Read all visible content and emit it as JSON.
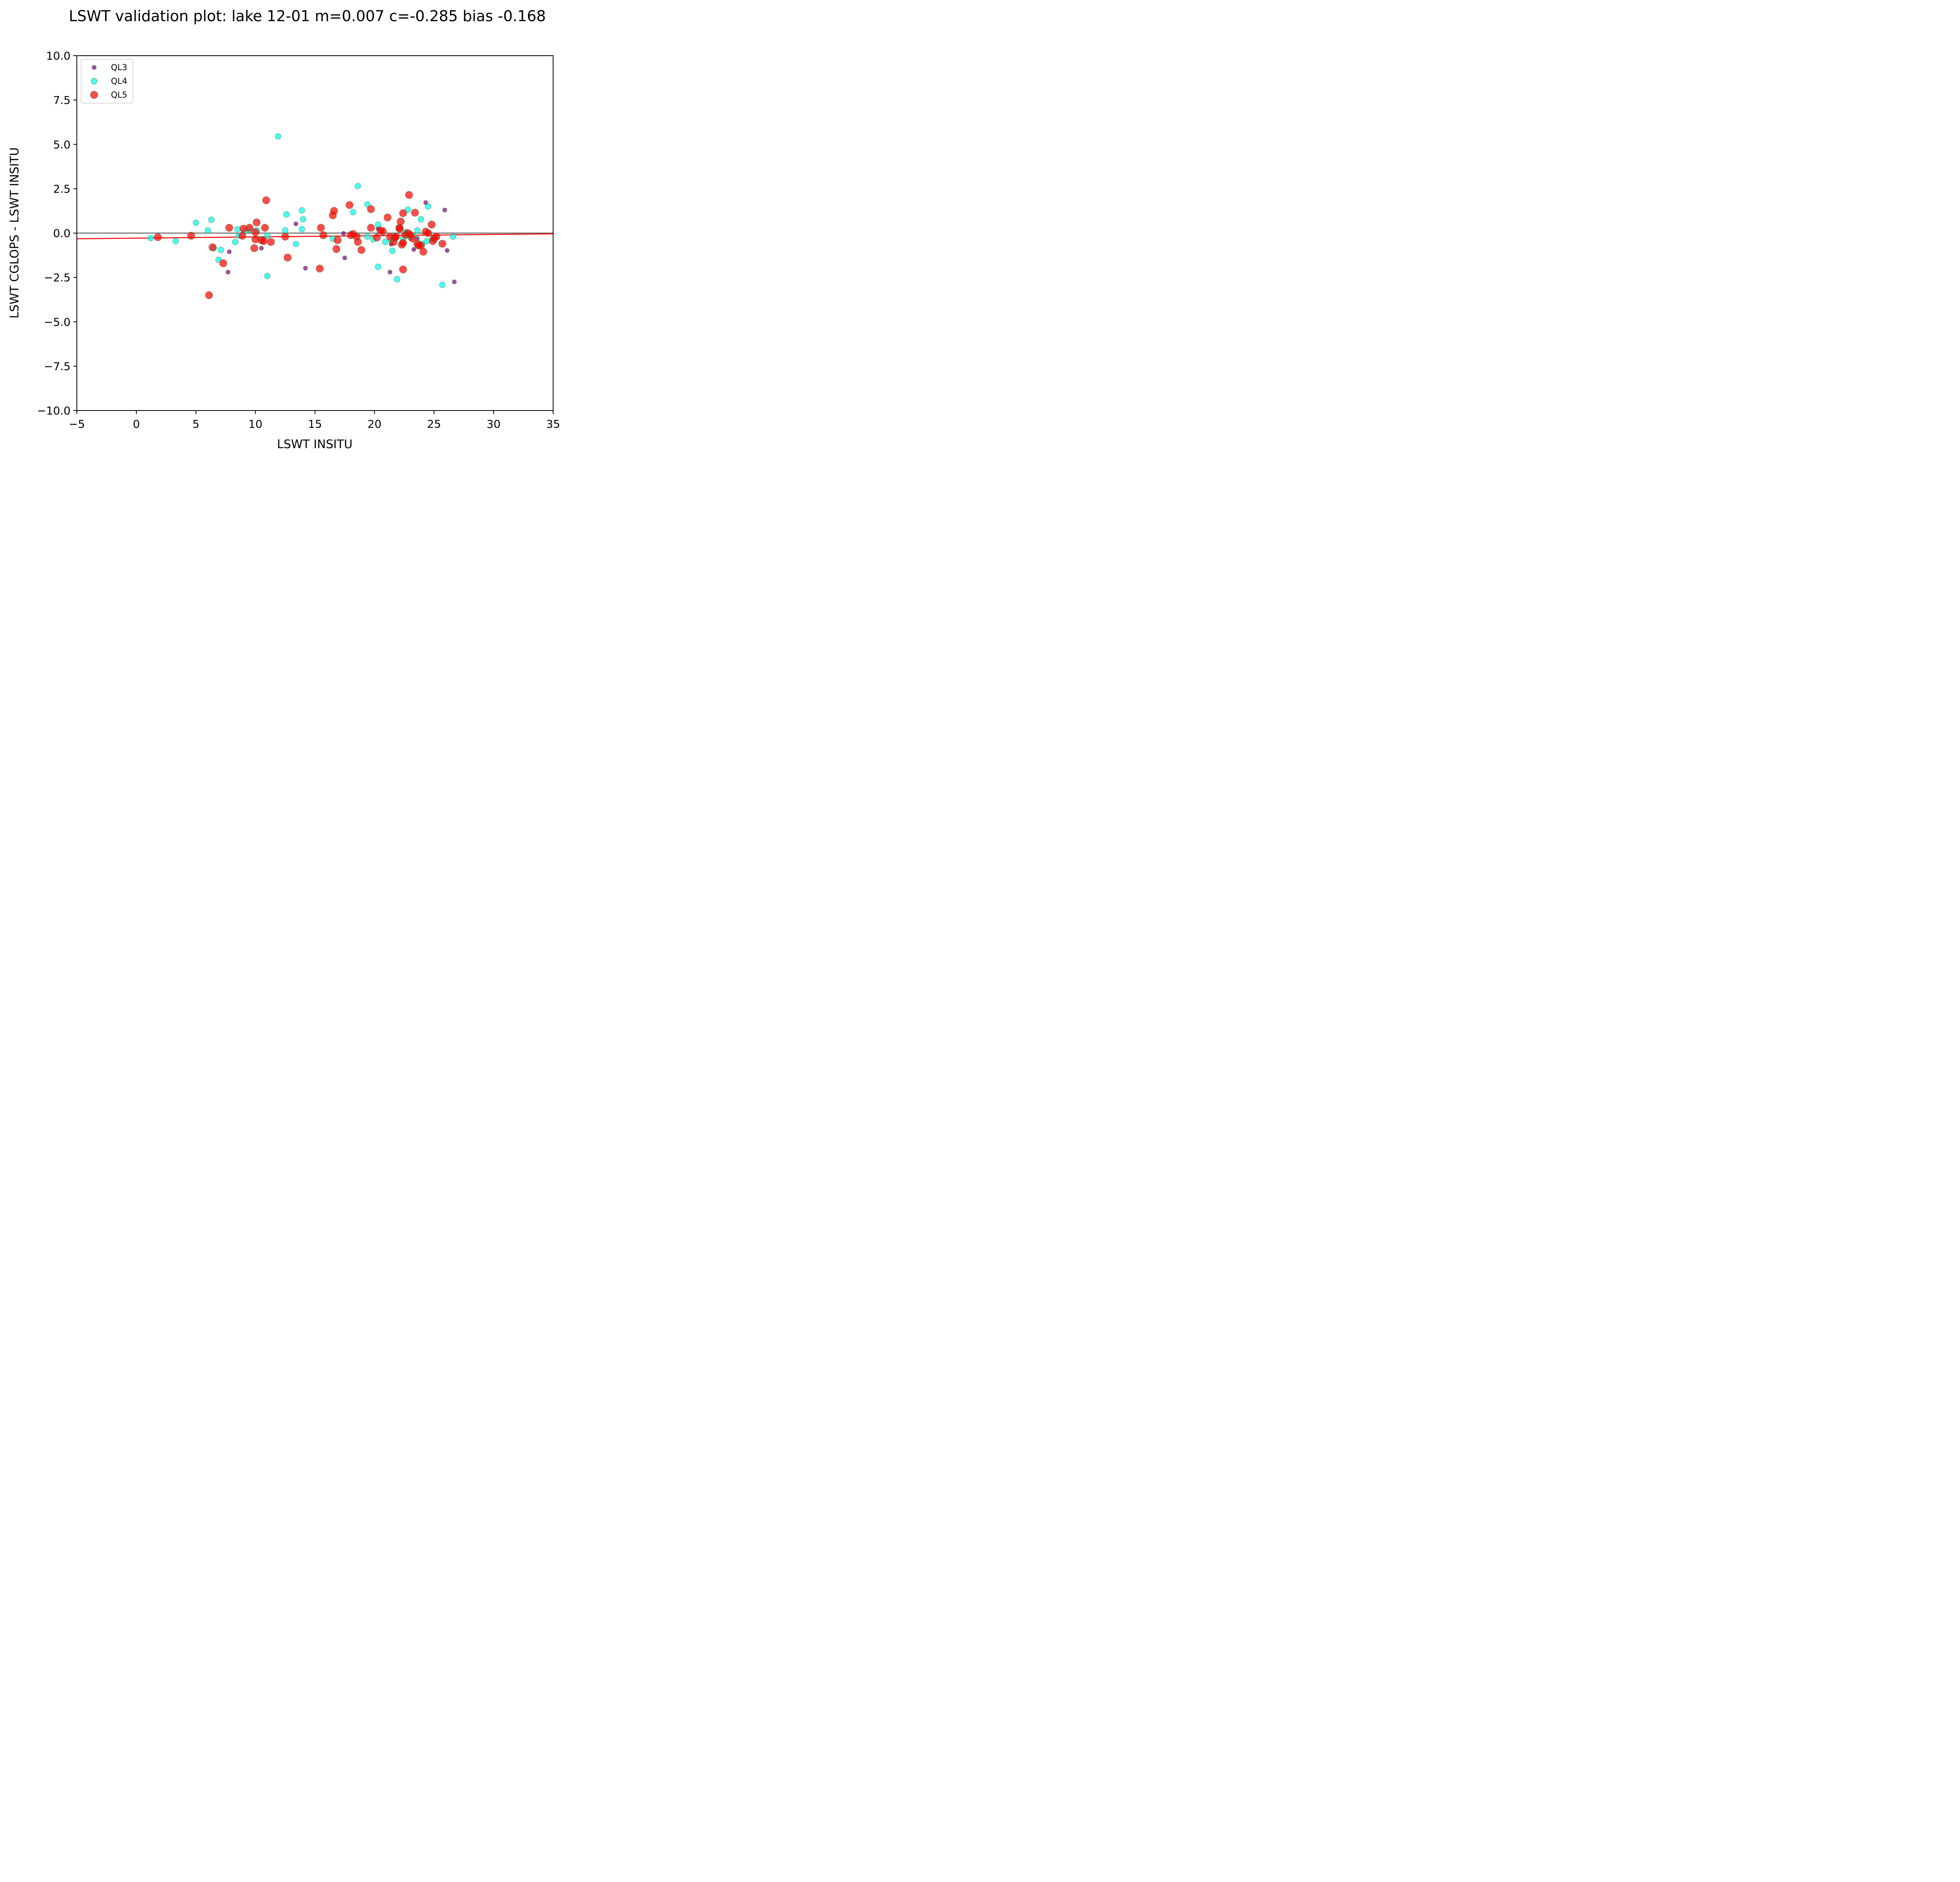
{
  "chart_data": {
    "type": "scatter",
    "title": "LSWT validation plot: lake 12-01 m=0.007 c=-0.285 bias -0.168",
    "xlabel": "LSWT INSITU",
    "ylabel": "LSWT CGLOPS - LSWT INSITU",
    "xlim": [
      -5,
      35
    ],
    "ylim": [
      -10,
      10
    ],
    "x_ticks": [
      -5,
      0,
      5,
      10,
      15,
      20,
      25,
      30,
      35
    ],
    "x_tick_labels": [
      "−5",
      "0",
      "5",
      "10",
      "15",
      "20",
      "25",
      "30",
      "35"
    ],
    "y_ticks": [
      -10,
      -7.5,
      -5,
      -2.5,
      0,
      2.5,
      5,
      7.5,
      10
    ],
    "y_tick_labels": [
      "−10.0",
      "−7.5",
      "−5.0",
      "−2.5",
      "0.0",
      "2.5",
      "5.0",
      "7.5",
      "10.0"
    ],
    "grid": false,
    "legend_position": "top-left",
    "zero_line": {
      "y": 0,
      "color": "#666666"
    },
    "fit_line": {
      "slope": 0.007,
      "intercept": -0.285,
      "color": "#ff0000"
    },
    "series": [
      {
        "name": "QL3",
        "color": "#800080",
        "points": [
          [
            7.7,
            -2.2
          ],
          [
            7.8,
            -1.05
          ],
          [
            10.5,
            -0.85
          ],
          [
            13.4,
            0.52
          ],
          [
            14.2,
            -1.98
          ],
          [
            17.4,
            -0.02
          ],
          [
            17.5,
            -1.4
          ],
          [
            20.3,
            0.25
          ],
          [
            21.3,
            -2.2
          ],
          [
            21.4,
            -0.62
          ],
          [
            23.3,
            -0.92
          ],
          [
            23.6,
            -0.3
          ],
          [
            24.3,
            1.72
          ],
          [
            25.9,
            1.3
          ],
          [
            26.1,
            -0.98
          ],
          [
            26.7,
            -2.75
          ]
        ]
      },
      {
        "name": "QL4",
        "color": "#00ffee",
        "points": [
          [
            1.2,
            -0.28
          ],
          [
            3.3,
            -0.45
          ],
          [
            5.0,
            0.58
          ],
          [
            6.0,
            0.15
          ],
          [
            6.3,
            0.75
          ],
          [
            6.5,
            -0.85
          ],
          [
            6.9,
            -1.5
          ],
          [
            7.1,
            -0.95
          ],
          [
            8.3,
            -0.5
          ],
          [
            8.5,
            0.22
          ],
          [
            8.6,
            -0.15
          ],
          [
            9.1,
            0.1
          ],
          [
            9.5,
            0.2
          ],
          [
            10.1,
            0.15
          ],
          [
            11.0,
            -0.15
          ],
          [
            11.0,
            -2.42
          ],
          [
            11.9,
            5.45
          ],
          [
            12.5,
            0.15
          ],
          [
            12.6,
            1.05
          ],
          [
            13.4,
            -0.62
          ],
          [
            13.9,
            1.28
          ],
          [
            14.0,
            0.78
          ],
          [
            13.9,
            0.22
          ],
          [
            16.5,
            -0.32
          ],
          [
            18.2,
            1.18
          ],
          [
            18.6,
            2.65
          ],
          [
            19.4,
            1.62
          ],
          [
            19.4,
            -0.2
          ],
          [
            19.9,
            -0.35
          ],
          [
            20.3,
            0.48
          ],
          [
            20.3,
            -1.9
          ],
          [
            20.9,
            -0.5
          ],
          [
            21.4,
            -0.4
          ],
          [
            21.5,
            -1.0
          ],
          [
            21.9,
            -2.6
          ],
          [
            22.4,
            -0.3
          ],
          [
            22.6,
            0.05
          ],
          [
            22.8,
            1.32
          ],
          [
            23.0,
            -0.25
          ],
          [
            23.3,
            -0.2
          ],
          [
            23.6,
            0.15
          ],
          [
            23.9,
            0.78
          ],
          [
            24.0,
            -0.6
          ],
          [
            24.5,
            1.5
          ],
          [
            24.4,
            -0.45
          ],
          [
            24.9,
            -0.32
          ],
          [
            25.7,
            -2.92
          ],
          [
            26.6,
            -0.2
          ]
        ]
      },
      {
        "name": "QL5",
        "color": "#ff0000",
        "points": [
          [
            1.8,
            -0.23
          ],
          [
            4.6,
            -0.15
          ],
          [
            6.1,
            -3.5
          ],
          [
            6.4,
            -0.8
          ],
          [
            7.3,
            -1.7
          ],
          [
            7.8,
            0.3
          ],
          [
            8.9,
            -0.15
          ],
          [
            9.0,
            0.25
          ],
          [
            9.5,
            0.3
          ],
          [
            9.9,
            -0.85
          ],
          [
            10.0,
            -0.35
          ],
          [
            10.0,
            0.05
          ],
          [
            10.1,
            0.6
          ],
          [
            10.5,
            -0.4
          ],
          [
            10.7,
            -0.45
          ],
          [
            10.8,
            0.3
          ],
          [
            10.9,
            1.85
          ],
          [
            11.3,
            -0.5
          ],
          [
            12.5,
            -0.2
          ],
          [
            12.7,
            -1.38
          ],
          [
            15.4,
            -2.0
          ],
          [
            15.5,
            0.3
          ],
          [
            15.7,
            -0.12
          ],
          [
            16.5,
            1.0
          ],
          [
            16.6,
            1.25
          ],
          [
            16.8,
            -0.9
          ],
          [
            16.9,
            -0.4
          ],
          [
            17.9,
            1.58
          ],
          [
            18.0,
            -0.12
          ],
          [
            18.2,
            -0.05
          ],
          [
            18.5,
            -0.2
          ],
          [
            18.6,
            -0.5
          ],
          [
            18.9,
            -0.95
          ],
          [
            19.7,
            1.35
          ],
          [
            19.7,
            0.3
          ],
          [
            20.2,
            -0.25
          ],
          [
            20.5,
            0.15
          ],
          [
            20.7,
            0.1
          ],
          [
            21.1,
            0.88
          ],
          [
            21.3,
            -0.2
          ],
          [
            21.6,
            -0.5
          ],
          [
            21.7,
            -0.25
          ],
          [
            21.8,
            -0.2
          ],
          [
            22.1,
            0.3
          ],
          [
            22.1,
            0.25
          ],
          [
            22.2,
            0.65
          ],
          [
            22.3,
            -0.65
          ],
          [
            22.4,
            1.12
          ],
          [
            22.4,
            -0.55
          ],
          [
            22.4,
            -2.05
          ],
          [
            22.6,
            -0.1
          ],
          [
            22.8,
            0.0
          ],
          [
            22.9,
            2.15
          ],
          [
            23.0,
            -0.1
          ],
          [
            23.2,
            -0.3
          ],
          [
            23.4,
            1.15
          ],
          [
            23.6,
            -0.6
          ],
          [
            23.7,
            -0.7
          ],
          [
            23.9,
            -0.7
          ],
          [
            24.1,
            -1.05
          ],
          [
            24.3,
            0.08
          ],
          [
            24.5,
            0.0
          ],
          [
            24.8,
            0.48
          ],
          [
            24.9,
            -0.45
          ],
          [
            25.0,
            -0.3
          ],
          [
            25.2,
            -0.2
          ],
          [
            25.7,
            -0.6
          ]
        ]
      }
    ]
  }
}
